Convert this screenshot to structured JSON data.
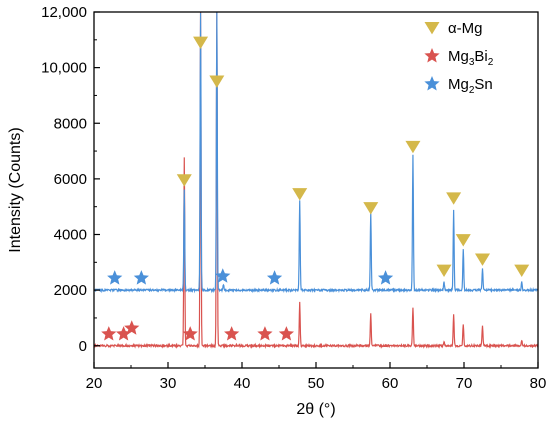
{
  "chart_data": {
    "type": "line",
    "xlabel": "2θ (°)",
    "ylabel": "Intensity (Counts)",
    "xlim": [
      20,
      80
    ],
    "ylim": [
      -800,
      12000
    ],
    "x_ticks": [
      20,
      30,
      40,
      50,
      60,
      70,
      80
    ],
    "y_ticks": [
      0,
      2000,
      4000,
      6000,
      8000,
      10000,
      12000
    ],
    "y_tick_labels": [
      "0",
      "2000",
      "4000",
      "6000",
      "8000",
      "10,000",
      "12,000"
    ],
    "grid": false,
    "series": [
      {
        "baseline": 0,
        "color": "#d9534f",
        "peaks": [
          {
            "x": 32.2,
            "y": 6800
          },
          {
            "x": 34.4,
            "y": 12000
          },
          {
            "x": 36.6,
            "y": 12000
          },
          {
            "x": 47.8,
            "y": 1550
          },
          {
            "x": 57.4,
            "y": 1150
          },
          {
            "x": 63.1,
            "y": 1400
          },
          {
            "x": 67.3,
            "y": 150
          },
          {
            "x": 68.6,
            "y": 1150
          },
          {
            "x": 69.9,
            "y": 800
          },
          {
            "x": 72.5,
            "y": 750
          },
          {
            "x": 77.8,
            "y": 200
          }
        ]
      },
      {
        "baseline": 2000,
        "color": "#4a90d9",
        "peaks": [
          {
            "x": 32.2,
            "y": 5650
          },
          {
            "x": 34.4,
            "y": 12000
          },
          {
            "x": 36.6,
            "y": 12000
          },
          {
            "x": 37.5,
            "y": 2200
          },
          {
            "x": 47.8,
            "y": 5200
          },
          {
            "x": 57.4,
            "y": 4800
          },
          {
            "x": 63.1,
            "y": 6850
          },
          {
            "x": 67.3,
            "y": 2300
          },
          {
            "x": 68.6,
            "y": 4900
          },
          {
            "x": 69.9,
            "y": 3500
          },
          {
            "x": 72.5,
            "y": 2800
          },
          {
            "x": 77.8,
            "y": 2300
          }
        ]
      }
    ],
    "markers": [
      {
        "series": "α-Mg",
        "symbol": "triangle",
        "color": "#d4b84a",
        "points": [
          {
            "x": 32.2,
            "y": 5950
          },
          {
            "x": 34.4,
            "y": 10900
          },
          {
            "x": 36.6,
            "y": 9500
          },
          {
            "x": 47.8,
            "y": 5450
          },
          {
            "x": 57.4,
            "y": 4950
          },
          {
            "x": 63.1,
            "y": 7150
          },
          {
            "x": 67.3,
            "y": 2700
          },
          {
            "x": 68.6,
            "y": 5300
          },
          {
            "x": 69.9,
            "y": 3800
          },
          {
            "x": 72.5,
            "y": 3100
          },
          {
            "x": 77.8,
            "y": 2700
          }
        ]
      },
      {
        "series": "Mg3Bi2",
        "symbol": "star",
        "color": "#d9534f",
        "points": [
          {
            "x": 22.0,
            "y": 420
          },
          {
            "x": 24.0,
            "y": 420
          },
          {
            "x": 25.1,
            "y": 630
          },
          {
            "x": 33.0,
            "y": 420
          },
          {
            "x": 38.6,
            "y": 420
          },
          {
            "x": 43.1,
            "y": 420
          },
          {
            "x": 46.0,
            "y": 420
          }
        ]
      },
      {
        "series": "Mg2Sn",
        "symbol": "star",
        "color": "#4a90d9",
        "points": [
          {
            "x": 22.8,
            "y": 2430
          },
          {
            "x": 26.4,
            "y": 2430
          },
          {
            "x": 37.4,
            "y": 2500
          },
          {
            "x": 44.4,
            "y": 2430
          },
          {
            "x": 59.4,
            "y": 2430
          }
        ]
      }
    ],
    "legend": {
      "placement": "top-right",
      "entries": [
        {
          "symbol": "triangle",
          "color": "#d4b84a",
          "label": "α-Mg",
          "base": "α-Mg",
          "sub": ""
        },
        {
          "symbol": "star",
          "color": "#d9534f",
          "label": "Mg3Bi2",
          "base": "Mg",
          "sub": "3",
          "base2": "Bi",
          "sub2": "2"
        },
        {
          "symbol": "star",
          "color": "#4a90d9",
          "label": "Mg2Sn",
          "base": "Mg",
          "sub": "2",
          "base2": "Sn",
          "sub2": ""
        }
      ]
    }
  }
}
